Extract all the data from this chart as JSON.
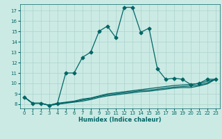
{
  "xlabel": "Humidex (Indice chaleur)",
  "bg_color": "#cceae4",
  "grid_color": "#aad4cc",
  "line_color": "#006666",
  "xlim": [
    -0.5,
    23.5
  ],
  "ylim": [
    7.6,
    17.6
  ],
  "yticks": [
    8,
    9,
    10,
    11,
    12,
    13,
    14,
    15,
    16,
    17
  ],
  "xticks": [
    0,
    1,
    2,
    3,
    4,
    5,
    6,
    7,
    8,
    9,
    10,
    11,
    12,
    13,
    14,
    15,
    16,
    17,
    18,
    19,
    20,
    21,
    22,
    23
  ],
  "lines": [
    {
      "x": [
        0,
        1,
        2,
        3,
        4,
        5,
        6,
        7,
        8,
        9,
        10,
        11,
        12,
        13,
        14,
        15,
        16,
        17,
        18,
        19,
        20,
        21,
        22,
        23
      ],
      "y": [
        8.7,
        8.1,
        8.1,
        7.9,
        8.1,
        11.0,
        11.0,
        12.5,
        13.0,
        15.0,
        15.5,
        14.4,
        17.3,
        17.3,
        14.9,
        15.3,
        11.4,
        10.4,
        10.5,
        10.4,
        9.9,
        10.0,
        10.4,
        10.4
      ],
      "marker": "D",
      "markersize": 2.5,
      "linewidth": 0.9
    },
    {
      "x": [
        0,
        1,
        2,
        3,
        4,
        5,
        6,
        7,
        8,
        9,
        10,
        11,
        12,
        13,
        14,
        15,
        16,
        17,
        18,
        19,
        20,
        21,
        22,
        23
      ],
      "y": [
        8.7,
        8.1,
        8.1,
        7.9,
        8.1,
        8.2,
        8.3,
        8.5,
        8.6,
        8.8,
        9.0,
        9.1,
        9.2,
        9.3,
        9.4,
        9.5,
        9.6,
        9.7,
        9.8,
        9.85,
        9.9,
        10.0,
        10.2,
        10.4
      ],
      "marker": null,
      "markersize": 0,
      "linewidth": 0.9
    },
    {
      "x": [
        0,
        1,
        2,
        3,
        4,
        5,
        6,
        7,
        8,
        9,
        10,
        11,
        12,
        13,
        14,
        15,
        16,
        17,
        18,
        19,
        20,
        21,
        22,
        23
      ],
      "y": [
        8.7,
        8.1,
        8.1,
        7.9,
        8.0,
        8.15,
        8.25,
        8.4,
        8.55,
        8.75,
        8.9,
        9.0,
        9.1,
        9.2,
        9.3,
        9.35,
        9.45,
        9.55,
        9.65,
        9.7,
        9.75,
        9.85,
        10.05,
        10.4
      ],
      "marker": null,
      "markersize": 0,
      "linewidth": 0.9
    },
    {
      "x": [
        0,
        1,
        2,
        3,
        4,
        5,
        6,
        7,
        8,
        9,
        10,
        11,
        12,
        13,
        14,
        15,
        16,
        17,
        18,
        19,
        20,
        21,
        22,
        23
      ],
      "y": [
        8.7,
        8.1,
        8.1,
        7.9,
        8.0,
        8.1,
        8.2,
        8.3,
        8.45,
        8.65,
        8.8,
        8.9,
        9.0,
        9.1,
        9.2,
        9.25,
        9.35,
        9.45,
        9.55,
        9.6,
        9.6,
        9.75,
        9.95,
        10.4
      ],
      "marker": null,
      "markersize": 0,
      "linewidth": 0.9
    }
  ]
}
